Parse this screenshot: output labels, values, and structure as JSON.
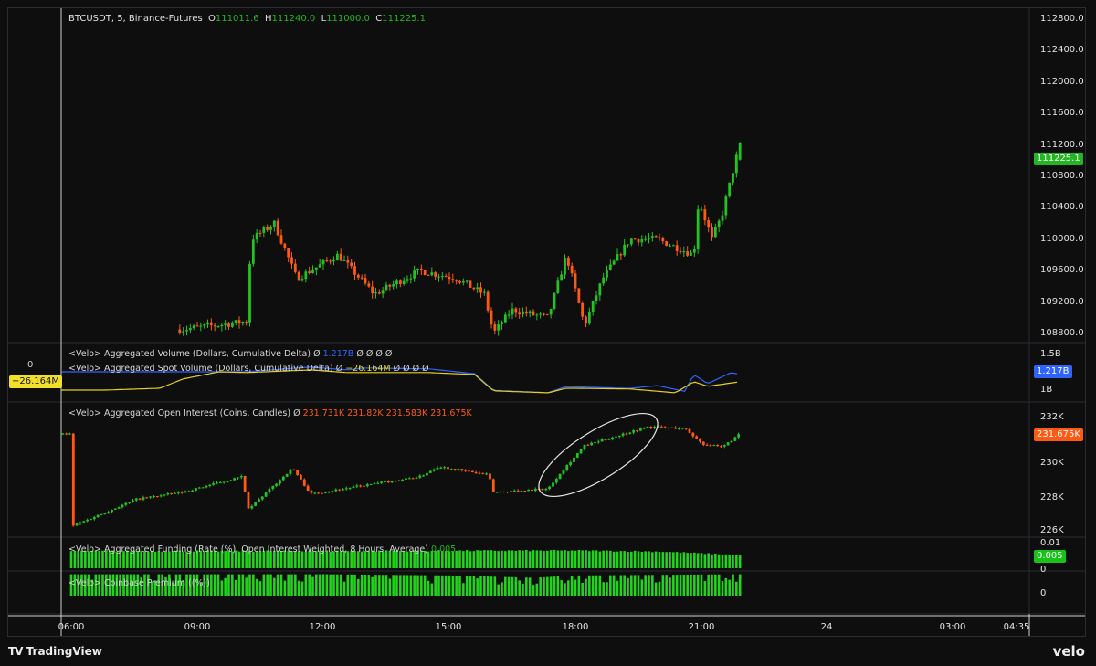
{
  "header": {
    "symbol": "BTCUSDT, 5, Binance-Futures",
    "o_label": "O",
    "o": "111011.6",
    "h_label": "H",
    "h": "111240.0",
    "l_label": "L",
    "l": "111000.0",
    "c_label": "C",
    "c": "111225.1"
  },
  "indicators": {
    "volume": {
      "title": "<Velo> Aggregated Volume (Dollars, Cumulative Delta)",
      "sep": "Ø",
      "value": "1.217B",
      "tail": "Ø Ø Ø Ø"
    },
    "spot": {
      "title": "<Velo> Aggregated Spot Volume (Dollars, Cumulative Delta)",
      "sep": "Ø",
      "value": "−26.164M",
      "tail": "Ø Ø Ø Ø"
    },
    "oi": {
      "title": "<Velo> Aggregated Open Interest (Coins, Candles)",
      "sep": "Ø",
      "v1": "231.731K",
      "v2": "231.82K",
      "v3": "231.583K",
      "v4": "231.675K"
    },
    "funding": {
      "title": "<Velo> Aggregated Funding (Rate (%), Open Interest Weighted, 8 Hours, Average)",
      "value": "0.005"
    },
    "premium": {
      "title": "<Velo> Coinbase Premium ((%))"
    }
  },
  "price_axis": {
    "ticks": [
      "112800.0",
      "112400.0",
      "112000.0",
      "111600.0",
      "111200.0",
      "110800.0",
      "110400.0",
      "110000.0",
      "109600.0",
      "109200.0",
      "108800.0"
    ],
    "last": "111225.1"
  },
  "volume_axis": {
    "ticks": [
      "1.5B",
      "1B"
    ],
    "last": "1.217B",
    "left_zero": "0",
    "left_last": "−26.164M"
  },
  "oi_axis": {
    "ticks": [
      "232K",
      "230K",
      "228K",
      "226K"
    ],
    "last": "231.675K"
  },
  "funding_axis": {
    "ticks": [
      "0.01",
      "0"
    ],
    "last": "0.005"
  },
  "premium_axis": {
    "ticks": [
      "0"
    ]
  },
  "time_axis": {
    "ticks": [
      "06:00",
      "09:00",
      "12:00",
      "15:00",
      "18:00",
      "21:00",
      "24",
      "03:00",
      "04:35"
    ]
  },
  "footer": {
    "brand": "TradingView",
    "logo": "TV",
    "right_logo": "velo"
  },
  "colors": {
    "up": "#22c322",
    "down": "#ff5a14",
    "bg": "#0e0e0e",
    "volume_line": "#2f63ff",
    "spot_line": "#e6cf1f",
    "funding": "#22d41c",
    "last_price": "#22b722"
  },
  "chart_data": [
    {
      "type": "candlestick",
      "title": "BTCUSDT, 5, Binance-Futures",
      "ylim": [
        108600,
        112900
      ],
      "anchors": [
        [
          "08:35",
          108850
        ],
        [
          "10:10",
          108950
        ],
        [
          "10:17",
          110000
        ],
        [
          "10:50",
          110200
        ],
        [
          "11:22",
          109500
        ],
        [
          "12:21",
          109800
        ],
        [
          "13:13",
          109300
        ],
        [
          "14:18",
          109600
        ],
        [
          "15:10",
          109500
        ],
        [
          "15:50",
          109300
        ],
        [
          "16:03",
          108800
        ],
        [
          "16:29",
          109100
        ],
        [
          "17:21",
          109000
        ],
        [
          "17:47",
          109800
        ],
        [
          "18:13",
          108900
        ],
        [
          "18:39",
          109500
        ],
        [
          "19:18",
          110000
        ],
        [
          "19:57",
          110000
        ],
        [
          "20:49",
          109800
        ],
        [
          "20:56",
          110500
        ],
        [
          "21:15",
          110000
        ],
        [
          "21:29",
          110300
        ],
        [
          "21:55",
          111225.1
        ]
      ],
      "last_candle": {
        "open": 111011.6,
        "high": 111240.0,
        "low": 111000.0,
        "close": 111225.1
      }
    },
    {
      "type": "line",
      "title": "Aggregated Volume (Dollars, Cumulative Delta)",
      "unit": "B",
      "points": [
        [
          "05:46",
          1.27
        ],
        [
          "10:10",
          1.27
        ],
        [
          "11:42",
          1.37
        ],
        [
          "12:34",
          1.31
        ],
        [
          "13:00",
          1.35
        ],
        [
          "14:31",
          1.33
        ],
        [
          "15:36",
          1.23
        ],
        [
          "16:03",
          0.88
        ],
        [
          "17:21",
          0.83
        ],
        [
          "17:47",
          0.96
        ],
        [
          "19:18",
          0.92
        ],
        [
          "19:57",
          0.98
        ],
        [
          "20:36",
          0.86
        ],
        [
          "20:49",
          1.21
        ],
        [
          "21:09",
          1.02
        ],
        [
          "21:42",
          1.25
        ],
        [
          "21:55",
          1.217
        ]
      ]
    },
    {
      "type": "line",
      "title": "Aggregated Spot Volume (Dollars, Cumulative Delta)",
      "unit": "M",
      "points": [
        [
          "05:46",
          -48
        ],
        [
          "06:48",
          -48
        ],
        [
          "08:07",
          -43
        ],
        [
          "08:39",
          -19
        ],
        [
          "09:31",
          0
        ],
        [
          "10:10",
          -2
        ],
        [
          "11:42",
          5
        ],
        [
          "12:34",
          -2
        ],
        [
          "14:31",
          -2
        ],
        [
          "15:36",
          -7
        ],
        [
          "16:03",
          -50
        ],
        [
          "17:21",
          -55
        ],
        [
          "17:47",
          -43
        ],
        [
          "19:18",
          -45
        ],
        [
          "20:23",
          -55
        ],
        [
          "20:49",
          -26
        ],
        [
          "21:09",
          -38
        ],
        [
          "21:55",
          -26.164
        ]
      ]
    },
    {
      "type": "candlestick",
      "title": "Aggregated Open Interest (Coins, Candles)",
      "unit": "K",
      "ylim": [
        225.8,
        232.6
      ],
      "anchors": [
        [
          "06:00",
          226.3
        ],
        [
          "07:34",
          227.9
        ],
        [
          "08:39",
          228.3
        ],
        [
          "10:04",
          229.2
        ],
        [
          "10:13",
          227.3
        ],
        [
          "11:16",
          229.7
        ],
        [
          "11:42",
          228.2
        ],
        [
          "14:18",
          229.2
        ],
        [
          "14:44",
          229.8
        ],
        [
          "15:56",
          229.3
        ],
        [
          "16:03",
          228.3
        ],
        [
          "17:21",
          228.5
        ],
        [
          "17:40",
          229.5
        ],
        [
          "18:13",
          231.0
        ],
        [
          "19:18",
          231.8
        ],
        [
          "19:44",
          232.1
        ],
        [
          "20:36",
          232.0
        ],
        [
          "21:02",
          231.1
        ],
        [
          "21:29",
          230.9
        ],
        [
          "21:55",
          231.675
        ]
      ]
    },
    {
      "type": "bar",
      "title": "Aggregated Funding (Rate (%), Open Interest Weighted, 8 Hours, Average)",
      "ylim": [
        0,
        0.01
      ],
      "points": [
        [
          "06:00",
          0.0068
        ],
        [
          "09:00",
          0.0068
        ],
        [
          "12:00",
          0.0068
        ],
        [
          "15:00",
          0.0069
        ],
        [
          "18:00",
          0.007
        ],
        [
          "20:00",
          0.0066
        ],
        [
          "21:55",
          0.0052
        ]
      ]
    },
    {
      "type": "bar",
      "title": "Coinbase Premium ((%))",
      "points": [
        [
          "06:00",
          0.9
        ],
        [
          "12:00",
          0.9
        ],
        [
          "15:00",
          0.85
        ],
        [
          "17:00",
          0.75
        ],
        [
          "18:00",
          0.85
        ],
        [
          "21:55",
          0.9
        ]
      ]
    }
  ]
}
